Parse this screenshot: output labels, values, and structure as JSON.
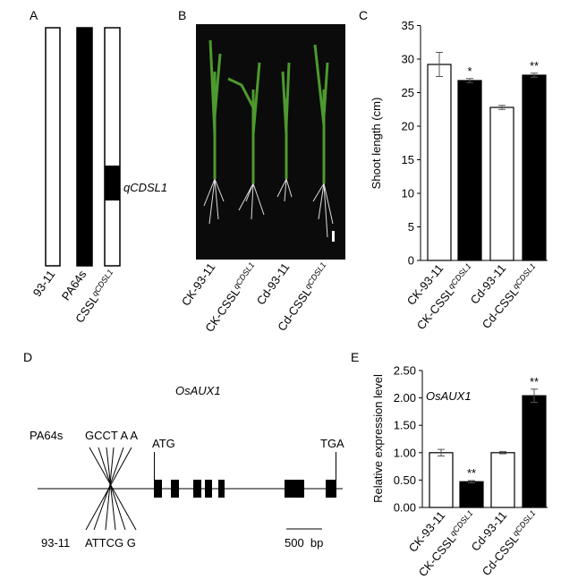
{
  "panel_labels": [
    "A",
    "B",
    "C",
    "D",
    "E"
  ],
  "panel_a": {
    "strains": [
      {
        "name": "93-11"
      },
      {
        "name": "PA64s"
      },
      {
        "name": "CSSL",
        "subscript": "qCDSL1"
      }
    ],
    "locus": "qCDSL1"
  },
  "panel_b": {
    "samples": [
      {
        "name": "CK-93-11"
      },
      {
        "name": "CK-CSSL",
        "subscript": "qCDSL1"
      },
      {
        "name": "Cd-93-11"
      },
      {
        "name": "Cd-CSSL",
        "subscript": "qCDSL1"
      }
    ]
  },
  "panel_d": {
    "gene": "OsAUX1",
    "alleles": [
      {
        "name": "PA64s",
        "sequence": "GCCT A A"
      },
      {
        "name": "93-11",
        "sequence": "ATTCG G"
      }
    ],
    "start_codon": "ATG",
    "stop_codon": "TGA",
    "scale_bar": "500  bp"
  },
  "chart_data": [
    {
      "type": "bar",
      "y_label": "Shoot length (cm)",
      "categories": [
        "CK-93-11",
        "CK-CSSL",
        "Cd-93-11",
        "Cd-CSSL"
      ],
      "category_subscripts": [
        null,
        "qCDSL1",
        null,
        "qCDSL1"
      ],
      "values": [
        29.2,
        26.8,
        22.8,
        27.6
      ],
      "errors": [
        1.8,
        0.3,
        0.3,
        0.3
      ],
      "annotations": [
        null,
        "*",
        null,
        "**"
      ],
      "colors": [
        "#ffffff",
        "#000000",
        "#ffffff",
        "#000000"
      ],
      "ylim": [
        0,
        35
      ],
      "yticks": [
        0,
        5,
        10,
        15,
        20,
        25,
        30,
        35
      ]
    },
    {
      "type": "bar",
      "title": "OsAUX1",
      "y_label": "Relative expression level",
      "categories": [
        "CK-93-11",
        "CK-CSSL",
        "Cd-93-11",
        "Cd-CSSL"
      ],
      "category_subscripts": [
        null,
        "qCDSL1",
        null,
        "qCDSL1"
      ],
      "values": [
        1.0,
        0.47,
        1.0,
        2.04
      ],
      "errors": [
        0.06,
        0.02,
        0.02,
        0.12
      ],
      "annotations": [
        null,
        "**",
        null,
        "**"
      ],
      "colors": [
        "#ffffff",
        "#000000",
        "#ffffff",
        "#000000"
      ],
      "ylim": [
        0,
        2.5
      ],
      "yticks": [
        {
          "value": 0,
          "label": "0.00"
        },
        {
          "value": 0.5,
          "label": "0.50"
        },
        {
          "value": 1,
          "label": "1.00"
        },
        {
          "value": 1.5,
          "label": "1.50"
        },
        {
          "value": 2,
          "label": "2.00"
        },
        {
          "value": 2.5,
          "label": "2.50"
        }
      ]
    }
  ]
}
